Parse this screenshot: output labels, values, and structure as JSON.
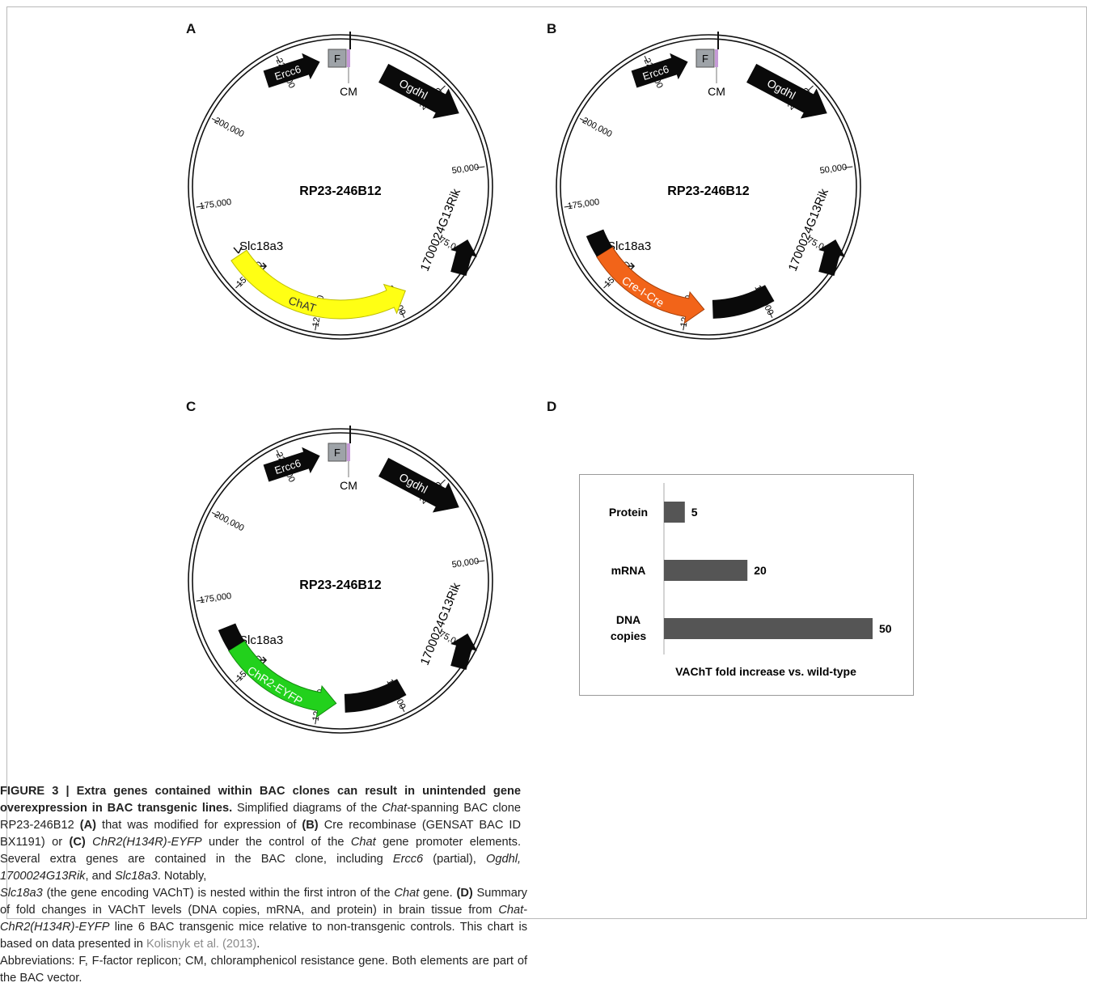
{
  "panels": [
    {
      "id": "A",
      "letter": "A",
      "center_label": "RP23-246B12",
      "insert_label": "ChAT",
      "insert_color": "#ffff14",
      "insert_outline": "#bdbd00",
      "has_trailing_black": false
    },
    {
      "id": "B",
      "letter": "B",
      "center_label": "RP23-246B12",
      "insert_label": "Cre-I-Cre",
      "insert_color": "#f26419",
      "insert_outline": "#a63e06",
      "has_trailing_black": true
    },
    {
      "id": "C",
      "letter": "C",
      "center_label": "RP23-246B12",
      "insert_label": "ChR2-EYFP",
      "insert_color": "#22d11c",
      "insert_outline": "#128a0e",
      "has_trailing_black": true
    }
  ],
  "bac_map": {
    "ticks": [
      "25,000",
      "50,000",
      "75,000",
      "100,000",
      "125,000",
      "150,000",
      "175,000",
      "200,000",
      "225,000"
    ],
    "genes": {
      "ercc6": "Ercc6",
      "ogdhl": "Ogdhl",
      "rik": "1700024G13Rik",
      "slc": "Slc18a3"
    },
    "f_label": "F",
    "cm_label": "CM"
  },
  "panel_d_letter": "D",
  "chart_data": {
    "type": "bar",
    "orientation": "horizontal",
    "categories": [
      "Protein",
      "mRNA",
      "DNA copies"
    ],
    "values": [
      5,
      20,
      50
    ],
    "data_labels": [
      "5",
      "20",
      "50"
    ],
    "xlabel": "VAChT fold increase vs. wild-type",
    "xlim": [
      0,
      50
    ],
    "grid": false,
    "bar_color": "#555555"
  },
  "caption": {
    "figure_label": "FIGURE 3 | Extra genes contained within BAC clones can result in unintended gene overexpression in BAC transgenic lines.",
    "left_segments": [
      " Simplified diagrams of the ",
      "Chat",
      "-spanning BAC clone RP23-246B12 ",
      "(A)",
      " that was modified for expression of ",
      "(B)",
      " Cre recombinase (GENSAT BAC ID BX1191) or ",
      "(C)",
      " ",
      "ChR2(H134R)-EYFP",
      " under the control of the ",
      "Chat",
      " gene promoter elements. Several extra genes are contained in the BAC clone, including ",
      "Ercc6",
      " (partial), ",
      "Ogdhl, 1700024G13Rik",
      ", and ",
      "Slc18a3",
      ". Notably,"
    ],
    "right_segments": [
      "Slc18a3",
      " (the gene encoding VAChT) is nested within the first intron of the ",
      "Chat",
      " gene. ",
      "(D)",
      " Summary of fold changes in VAChT levels (DNA copies, mRNA, and protein) in brain tissue from ",
      "Chat-ChR2(H134R)-EYFP",
      " line 6 BAC transgenic mice relative to non-transgenic controls. This chart is based on data presented in ",
      "Kolisnyk et al. (2013)",
      ".",
      "Abbreviations: F, F-factor replicon; CM, chloramphenicol resistance gene. Both elements are part of the BAC vector."
    ]
  }
}
